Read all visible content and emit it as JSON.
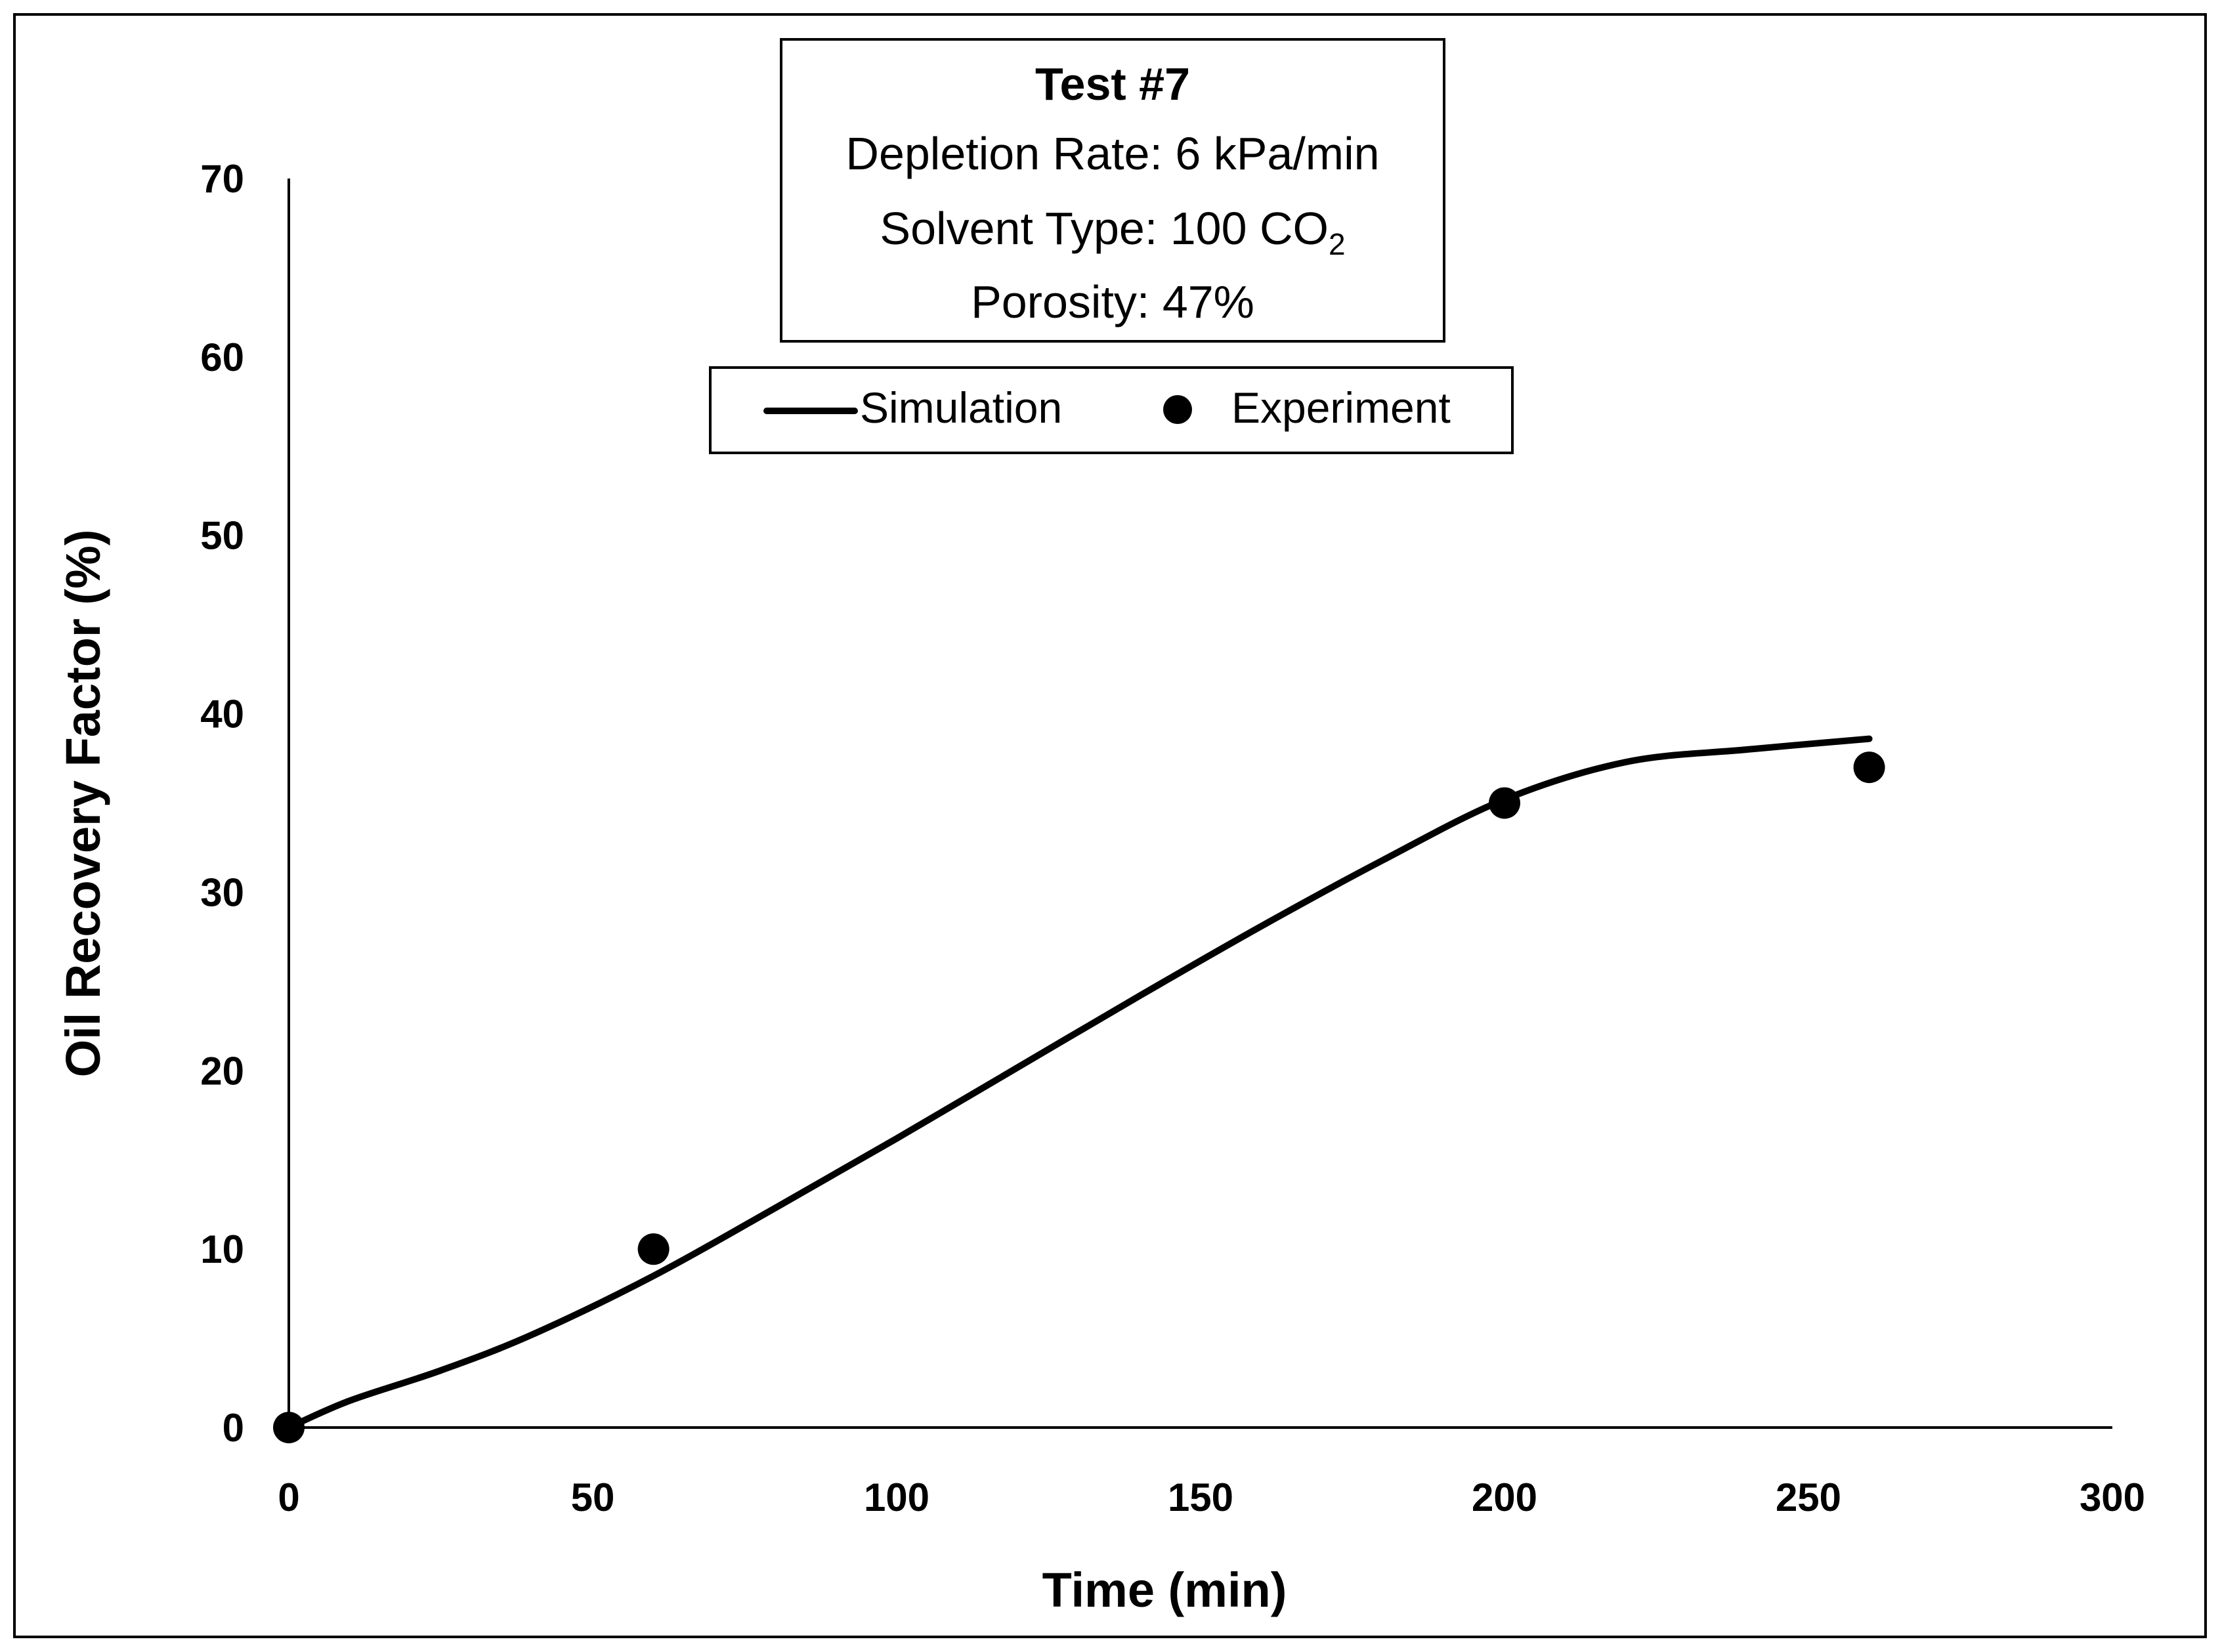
{
  "chart_data": {
    "type": "line",
    "info_box": {
      "title": "Test #7",
      "depletion_rate": "Depletion Rate: 6 kPa/min",
      "solvent_type_prefix": "Solvent Type: 100 CO",
      "solvent_type_subscript": "2",
      "porosity": "Porosity: 47%"
    },
    "xlabel": "Time (min)",
    "ylabel": "Oil Recovery Factor (%)",
    "xlim": [
      0,
      300
    ],
    "ylim": [
      0,
      70
    ],
    "x_ticks": [
      0,
      50,
      100,
      150,
      200,
      250,
      300
    ],
    "y_ticks": [
      0,
      10,
      20,
      30,
      40,
      50,
      60,
      70
    ],
    "legend": {
      "position": "top-center",
      "simulation_label": "Simulation",
      "experiment_label": "Experiment"
    },
    "series": [
      {
        "name": "Simulation",
        "style": "line",
        "color": "#000000",
        "x": [
          0,
          10,
          25,
          40,
          60,
          80,
          100,
          120,
          140,
          160,
          180,
          200,
          220,
          240,
          260
        ],
        "y": [
          0,
          1.5,
          3.2,
          5.2,
          8.5,
          12.3,
          16.2,
          20.2,
          24.2,
          28.1,
          31.8,
          35.2,
          37.3,
          38.0,
          38.6
        ]
      },
      {
        "name": "Experiment",
        "style": "marker",
        "color": "#000000",
        "x": [
          0,
          60,
          200,
          260
        ],
        "y": [
          0,
          10,
          35,
          37
        ]
      }
    ]
  }
}
